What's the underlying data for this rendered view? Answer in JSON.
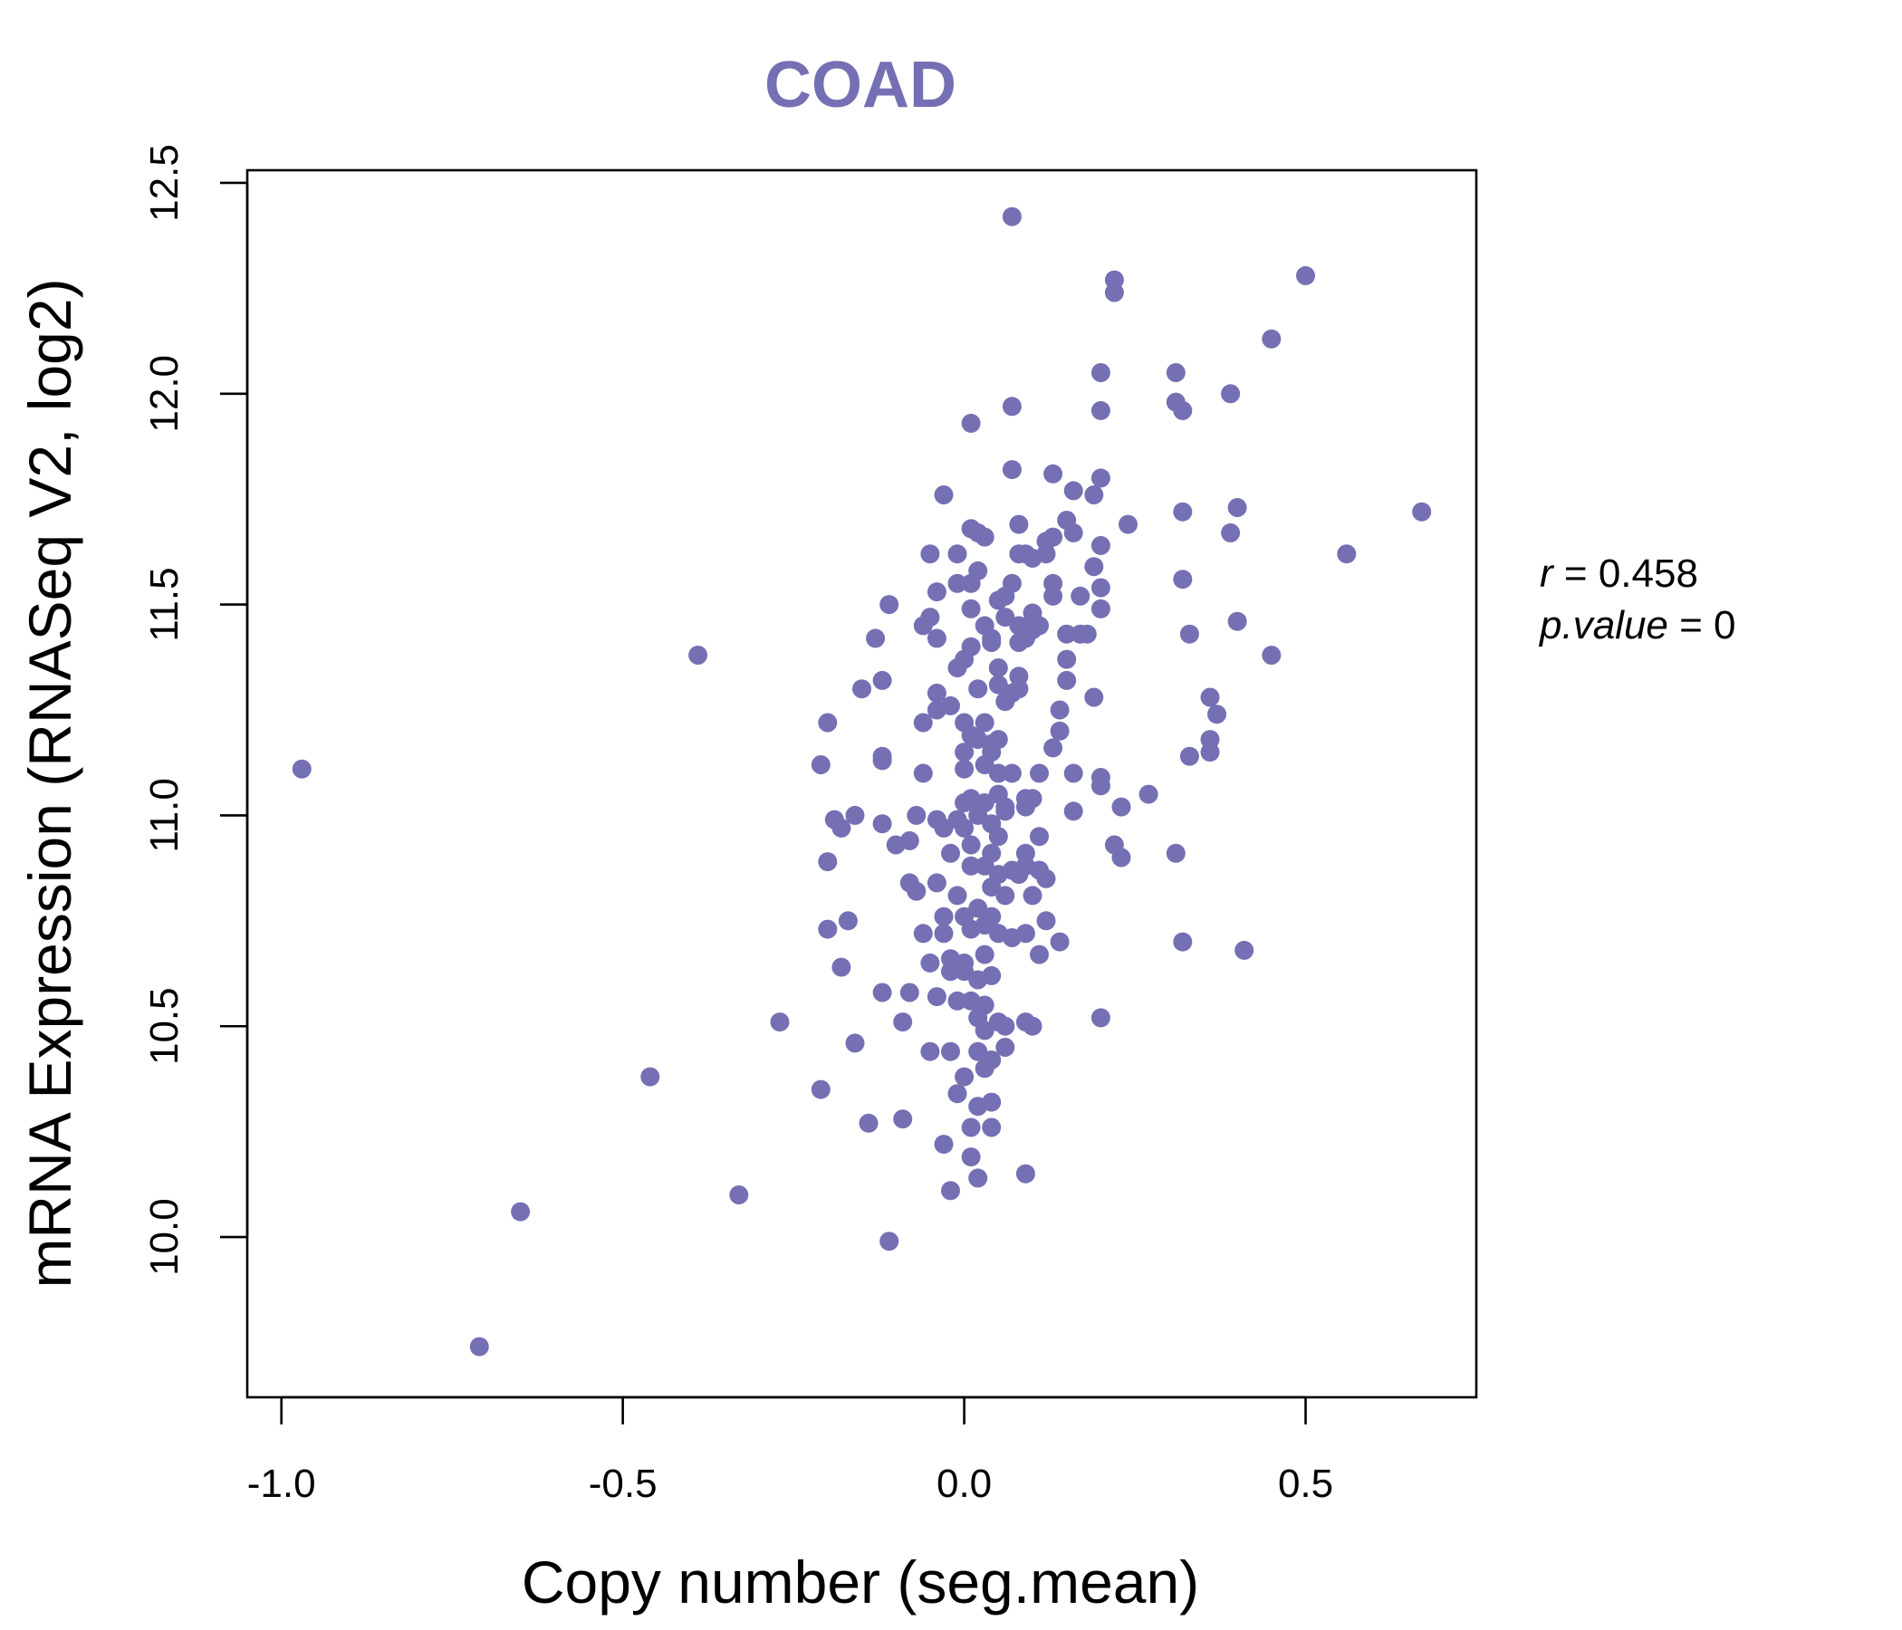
{
  "colors": {
    "accent": "#7570b3",
    "axis": "#000000",
    "background": "#ffffff"
  },
  "chart_data": {
    "type": "scatter",
    "title": "COAD",
    "xlabel": "Copy number (seg.mean)",
    "ylabel": "mRNA Expression (RNASeq V2, log2)",
    "xlim": [
      -1.05,
      0.75
    ],
    "ylim": [
      9.62,
      12.53
    ],
    "xticks": [
      -1.0,
      -0.5,
      0.0,
      0.5
    ],
    "xtick_labels": [
      "-1.0",
      "-0.5",
      "0.0",
      "0.5"
    ],
    "yticks": [
      10.0,
      10.5,
      11.0,
      11.5,
      12.0,
      12.5
    ],
    "ytick_labels": [
      "10.0",
      "10.5",
      "11.0",
      "11.5",
      "12.0",
      "12.5"
    ],
    "grid": false,
    "stats": {
      "r_symbol": "r",
      "r_value": "0.458",
      "p_symbol": "p.value",
      "p_value": "0"
    },
    "points": [
      [
        -0.97,
        11.11
      ],
      [
        -0.71,
        9.74
      ],
      [
        -0.65,
        10.06
      ],
      [
        -0.46,
        10.38
      ],
      [
        -0.39,
        11.38
      ],
      [
        -0.33,
        10.1
      ],
      [
        -0.27,
        10.51
      ],
      [
        -0.21,
        11.12
      ],
      [
        -0.2,
        11.22
      ],
      [
        -0.21,
        10.35
      ],
      [
        -0.2,
        10.89
      ],
      [
        -0.2,
        10.73
      ],
      [
        -0.19,
        10.99
      ],
      [
        -0.18,
        10.97
      ],
      [
        -0.18,
        10.64
      ],
      [
        -0.17,
        10.75
      ],
      [
        -0.16,
        11.0
      ],
      [
        -0.16,
        10.46
      ],
      [
        -0.15,
        11.3
      ],
      [
        -0.14,
        10.27
      ],
      [
        -0.13,
        11.42
      ],
      [
        -0.12,
        11.32
      ],
      [
        -0.12,
        11.14
      ],
      [
        -0.12,
        11.13
      ],
      [
        -0.12,
        10.98
      ],
      [
        -0.12,
        10.58
      ],
      [
        -0.11,
        11.5
      ],
      [
        -0.11,
        9.99
      ],
      [
        -0.1,
        10.93
      ],
      [
        -0.09,
        10.28
      ],
      [
        -0.09,
        10.51
      ],
      [
        -0.08,
        10.58
      ],
      [
        -0.08,
        10.94
      ],
      [
        -0.07,
        11.0
      ],
      [
        -0.08,
        10.84
      ],
      [
        -0.07,
        10.82
      ],
      [
        -0.06,
        11.45
      ],
      [
        -0.06,
        11.22
      ],
      [
        -0.06,
        11.1
      ],
      [
        -0.06,
        10.72
      ],
      [
        -0.05,
        10.65
      ],
      [
        -0.05,
        10.44
      ],
      [
        -0.05,
        11.62
      ],
      [
        -0.05,
        11.47
      ],
      [
        -0.04,
        11.29
      ],
      [
        -0.04,
        11.25
      ],
      [
        -0.04,
        11.53
      ],
      [
        -0.04,
        11.42
      ],
      [
        -0.04,
        10.84
      ],
      [
        -0.04,
        10.99
      ],
      [
        -0.04,
        10.57
      ],
      [
        -0.03,
        10.76
      ],
      [
        -0.03,
        10.72
      ],
      [
        -0.03,
        10.22
      ],
      [
        -0.03,
        11.76
      ],
      [
        -0.03,
        10.97
      ],
      [
        -0.02,
        10.91
      ],
      [
        -0.02,
        10.66
      ],
      [
        -0.02,
        10.63
      ],
      [
        -0.02,
        10.44
      ],
      [
        -0.02,
        10.11
      ],
      [
        -0.02,
        11.26
      ],
      [
        -0.01,
        11.55
      ],
      [
        -0.01,
        11.62
      ],
      [
        -0.01,
        11.35
      ],
      [
        -0.01,
        10.99
      ],
      [
        -0.01,
        10.81
      ],
      [
        -0.01,
        10.56
      ],
      [
        -0.01,
        10.34
      ],
      [
        0.0,
        11.15
      ],
      [
        0.0,
        11.11
      ],
      [
        0.0,
        11.03
      ],
      [
        0.0,
        10.97
      ],
      [
        0.0,
        10.76
      ],
      [
        0.0,
        10.65
      ],
      [
        0.0,
        10.63
      ],
      [
        0.0,
        11.37
      ],
      [
        0.0,
        11.22
      ],
      [
        0.0,
        10.38
      ],
      [
        0.01,
        11.49
      ],
      [
        0.01,
        11.04
      ],
      [
        0.01,
        10.93
      ],
      [
        0.01,
        10.88
      ],
      [
        0.01,
        10.73
      ],
      [
        0.01,
        10.56
      ],
      [
        0.01,
        10.26
      ],
      [
        0.01,
        11.93
      ],
      [
        0.01,
        11.68
      ],
      [
        0.01,
        11.55
      ],
      [
        0.01,
        11.4
      ],
      [
        0.01,
        11.19
      ],
      [
        0.01,
        10.19
      ],
      [
        0.02,
        11.3
      ],
      [
        0.02,
        11.0
      ],
      [
        0.02,
        10.78
      ],
      [
        0.02,
        10.61
      ],
      [
        0.02,
        10.52
      ],
      [
        0.02,
        10.44
      ],
      [
        0.02,
        10.31
      ],
      [
        0.02,
        10.14
      ],
      [
        0.02,
        11.67
      ],
      [
        0.02,
        11.58
      ],
      [
        0.02,
        11.18
      ],
      [
        0.03,
        11.45
      ],
      [
        0.03,
        11.03
      ],
      [
        0.03,
        10.88
      ],
      [
        0.03,
        10.74
      ],
      [
        0.03,
        10.67
      ],
      [
        0.03,
        10.55
      ],
      [
        0.03,
        10.49
      ],
      [
        0.03,
        11.66
      ],
      [
        0.03,
        11.22
      ],
      [
        0.03,
        11.12
      ],
      [
        0.03,
        10.4
      ],
      [
        0.04,
        11.42
      ],
      [
        0.04,
        11.41
      ],
      [
        0.04,
        11.17
      ],
      [
        0.04,
        11.15
      ],
      [
        0.04,
        10.98
      ],
      [
        0.04,
        10.91
      ],
      [
        0.04,
        10.83
      ],
      [
        0.04,
        10.76
      ],
      [
        0.04,
        10.62
      ],
      [
        0.04,
        10.42
      ],
      [
        0.04,
        10.32
      ],
      [
        0.04,
        10.26
      ],
      [
        0.05,
        11.35
      ],
      [
        0.05,
        11.1
      ],
      [
        0.05,
        11.05
      ],
      [
        0.05,
        10.95
      ],
      [
        0.05,
        10.86
      ],
      [
        0.05,
        10.72
      ],
      [
        0.05,
        10.51
      ],
      [
        0.05,
        11.51
      ],
      [
        0.05,
        11.31
      ],
      [
        0.05,
        11.18
      ],
      [
        0.06,
        11.02
      ],
      [
        0.06,
        10.81
      ],
      [
        0.06,
        10.45
      ],
      [
        0.06,
        11.52
      ],
      [
        0.06,
        11.47
      ],
      [
        0.06,
        11.27
      ],
      [
        0.06,
        11.01
      ],
      [
        0.06,
        10.5
      ],
      [
        0.07,
        11.82
      ],
      [
        0.07,
        12.42
      ],
      [
        0.07,
        11.97
      ],
      [
        0.07,
        11.55
      ],
      [
        0.07,
        11.29
      ],
      [
        0.07,
        11.1
      ],
      [
        0.07,
        10.87
      ],
      [
        0.07,
        10.71
      ],
      [
        0.08,
        11.62
      ],
      [
        0.08,
        11.45
      ],
      [
        0.08,
        11.41
      ],
      [
        0.08,
        11.33
      ],
      [
        0.08,
        11.3
      ],
      [
        0.08,
        10.86
      ],
      [
        0.08,
        11.69
      ],
      [
        0.09,
        11.04
      ],
      [
        0.09,
        11.02
      ],
      [
        0.09,
        10.91
      ],
      [
        0.09,
        10.88
      ],
      [
        0.09,
        10.72
      ],
      [
        0.09,
        10.51
      ],
      [
        0.09,
        10.15
      ],
      [
        0.09,
        11.62
      ],
      [
        0.09,
        11.42
      ],
      [
        0.1,
        11.48
      ],
      [
        0.1,
        11.44
      ],
      [
        0.1,
        11.61
      ],
      [
        0.1,
        11.46
      ],
      [
        0.1,
        11.04
      ],
      [
        0.1,
        10.81
      ],
      [
        0.1,
        10.5
      ],
      [
        0.11,
        10.95
      ],
      [
        0.11,
        10.87
      ],
      [
        0.11,
        10.67
      ],
      [
        0.11,
        11.1
      ],
      [
        0.11,
        11.45
      ],
      [
        0.12,
        11.65
      ],
      [
        0.12,
        11.62
      ],
      [
        0.12,
        10.85
      ],
      [
        0.12,
        10.75
      ],
      [
        0.13,
        11.66
      ],
      [
        0.13,
        11.55
      ],
      [
        0.13,
        11.52
      ],
      [
        0.13,
        11.16
      ],
      [
        0.13,
        11.81
      ],
      [
        0.14,
        11.25
      ],
      [
        0.14,
        11.2
      ],
      [
        0.14,
        10.7
      ],
      [
        0.15,
        11.7
      ],
      [
        0.15,
        11.43
      ],
      [
        0.15,
        11.37
      ],
      [
        0.15,
        11.32
      ],
      [
        0.16,
        11.67
      ],
      [
        0.16,
        11.1
      ],
      [
        0.16,
        11.01
      ],
      [
        0.16,
        11.77
      ],
      [
        0.17,
        11.52
      ],
      [
        0.17,
        11.43
      ],
      [
        0.18,
        11.43
      ],
      [
        0.19,
        11.59
      ],
      [
        0.19,
        11.28
      ],
      [
        0.19,
        11.76
      ],
      [
        0.2,
        11.8
      ],
      [
        0.2,
        11.64
      ],
      [
        0.2,
        11.54
      ],
      [
        0.2,
        11.49
      ],
      [
        0.2,
        11.09
      ],
      [
        0.2,
        11.07
      ],
      [
        0.2,
        10.52
      ],
      [
        0.2,
        12.05
      ],
      [
        0.2,
        11.96
      ],
      [
        0.22,
        12.27
      ],
      [
        0.22,
        12.24
      ],
      [
        0.22,
        10.93
      ],
      [
        0.23,
        11.02
      ],
      [
        0.23,
        10.9
      ],
      [
        0.24,
        11.69
      ],
      [
        0.27,
        11.05
      ],
      [
        0.31,
        12.05
      ],
      [
        0.31,
        11.98
      ],
      [
        0.31,
        10.91
      ],
      [
        0.32,
        11.96
      ],
      [
        0.32,
        11.56
      ],
      [
        0.32,
        11.72
      ],
      [
        0.32,
        10.7
      ],
      [
        0.33,
        11.43
      ],
      [
        0.33,
        11.14
      ],
      [
        0.36,
        11.28
      ],
      [
        0.36,
        11.18
      ],
      [
        0.36,
        11.15
      ],
      [
        0.37,
        11.24
      ],
      [
        0.39,
        12.0
      ],
      [
        0.39,
        11.67
      ],
      [
        0.4,
        11.73
      ],
      [
        0.4,
        11.46
      ],
      [
        0.41,
        10.68
      ],
      [
        0.45,
        12.13
      ],
      [
        0.45,
        11.38
      ],
      [
        0.5,
        12.28
      ],
      [
        0.56,
        11.62
      ],
      [
        0.67,
        11.72
      ]
    ]
  }
}
